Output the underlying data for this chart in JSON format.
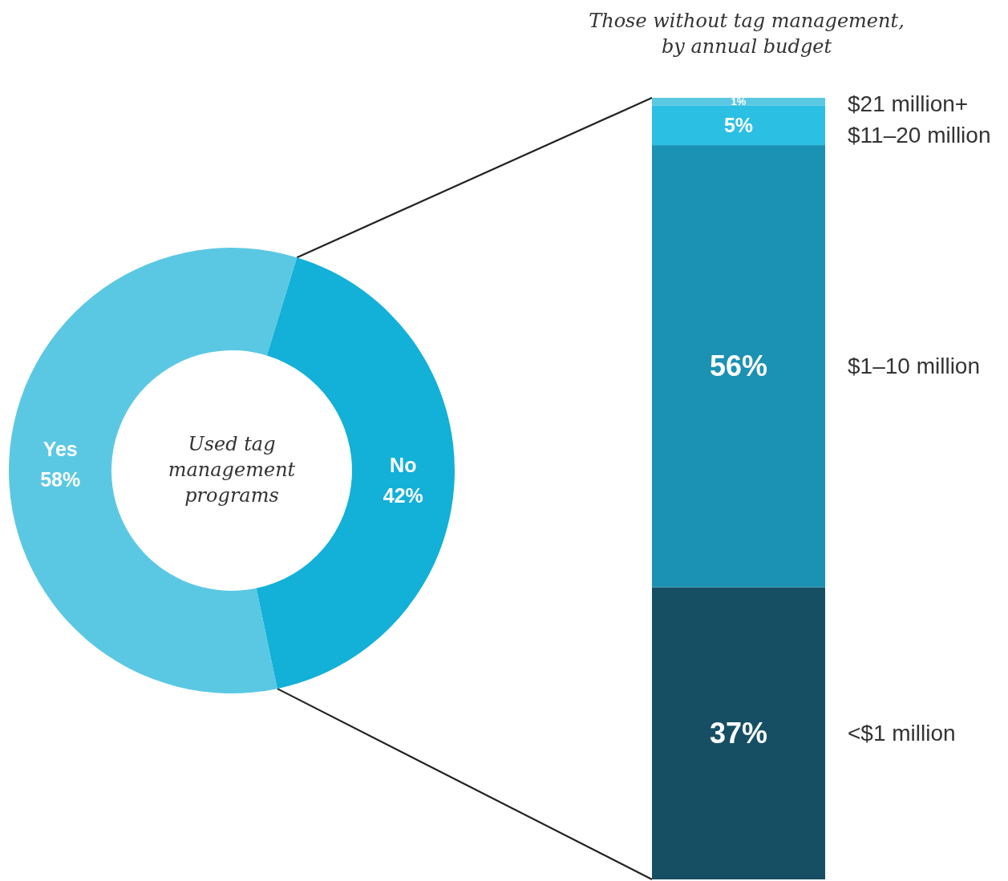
{
  "chart_data": [
    {
      "type": "donut",
      "title": "Used tag management programs",
      "categories": [
        "Yes",
        "No"
      ],
      "values": [
        58,
        42
      ],
      "colors": [
        "#5bc8e3",
        "#13b0d8"
      ],
      "value_labels": [
        "58%",
        "42%"
      ],
      "legend": false
    },
    {
      "type": "bar",
      "stacked": true,
      "title": "Those without tag management, by annual budget",
      "categories": [
        null
      ],
      "legend": false,
      "series": [
        {
          "name": "<$1 million",
          "color": "#164f63",
          "values": [
            37
          ],
          "value_labels": [
            "37%"
          ]
        },
        {
          "name": "$1–10 million",
          "color": "#1b91b3",
          "values": [
            56
          ],
          "value_labels": [
            "56%"
          ]
        },
        {
          "name": "$11–20 million",
          "color": "#2bbfe3",
          "values": [
            5
          ],
          "value_labels": [
            "5%"
          ]
        },
        {
          "name": "$21 million+",
          "color": "#5bc8e3",
          "values": [
            1
          ],
          "value_labels": [
            "1%"
          ]
        }
      ]
    }
  ]
}
